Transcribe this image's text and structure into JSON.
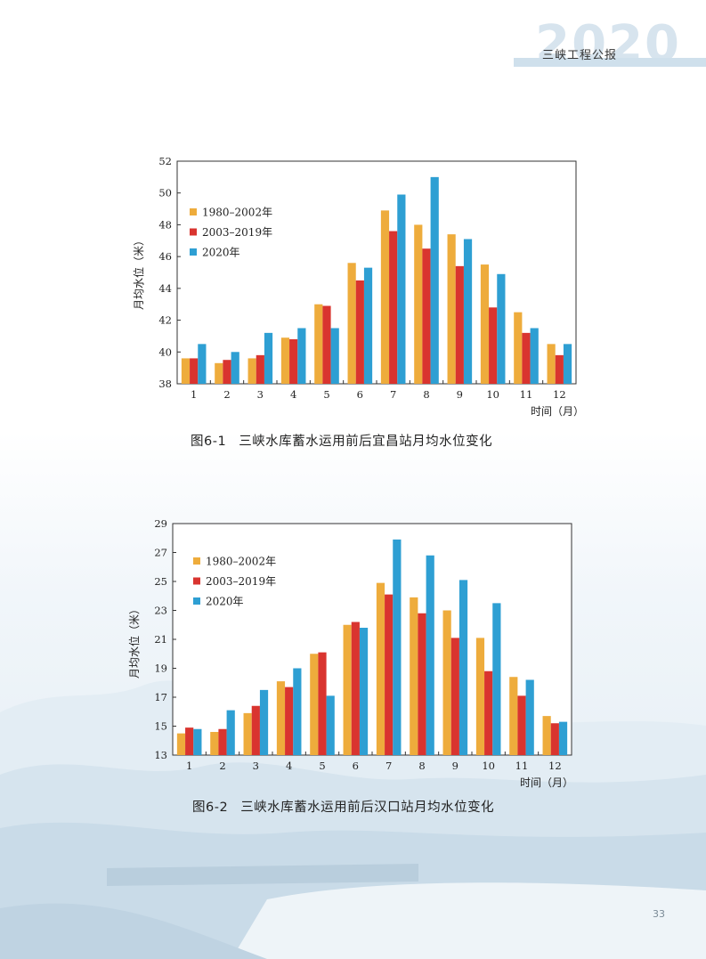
{
  "header": {
    "title": "三峡工程公报",
    "watermark_year": "2020"
  },
  "page_number": "33",
  "series_colors": [
    "#eeac3c",
    "#d9342f",
    "#2e9fd3"
  ],
  "captions": [
    {
      "num": "图6-1",
      "text": "三峡水库蓄水运用前后宜昌站月均水位变化"
    },
    {
      "num": "图6-2",
      "text": "三峡水库蓄水运用前后汉口站月均水位变化"
    }
  ],
  "chart_data": [
    {
      "type": "bar",
      "title": "图6-1 三峡水库蓄水运用前后宜昌站月均水位变化",
      "xlabel": "时间（月）",
      "ylabel": "月均水位（米）",
      "ylim": [
        38,
        52
      ],
      "yticks": [
        38,
        40,
        42,
        44,
        46,
        48,
        50,
        52
      ],
      "categories": [
        "1",
        "2",
        "3",
        "4",
        "5",
        "6",
        "7",
        "8",
        "9",
        "10",
        "11",
        "12"
      ],
      "legend_position": "upper-left",
      "series": [
        {
          "name": "1980–2002年",
          "values": [
            39.6,
            39.3,
            39.6,
            40.9,
            43.0,
            45.6,
            48.9,
            48.0,
            47.4,
            45.5,
            42.5,
            40.5
          ]
        },
        {
          "name": "2003–2019年",
          "values": [
            39.6,
            39.5,
            39.8,
            40.8,
            42.9,
            44.5,
            47.6,
            46.5,
            45.4,
            42.8,
            41.2,
            39.8
          ]
        },
        {
          "name": "2020年",
          "values": [
            40.5,
            40.0,
            41.2,
            41.5,
            41.5,
            45.3,
            49.9,
            51.0,
            47.1,
            44.9,
            41.5,
            40.5
          ]
        }
      ]
    },
    {
      "type": "bar",
      "title": "图6-2 三峡水库蓄水运用前后汉口站月均水位变化",
      "xlabel": "时间（月）",
      "ylabel": "月均水位（米）",
      "ylim": [
        13,
        29
      ],
      "yticks": [
        13,
        15,
        17,
        19,
        21,
        23,
        25,
        27,
        29
      ],
      "categories": [
        "1",
        "2",
        "3",
        "4",
        "5",
        "6",
        "7",
        "8",
        "9",
        "10",
        "11",
        "12"
      ],
      "legend_position": "upper-left",
      "series": [
        {
          "name": "1980–2002年",
          "values": [
            14.5,
            14.6,
            15.9,
            18.1,
            20.0,
            22.0,
            24.9,
            23.9,
            23.0,
            21.1,
            18.4,
            15.7
          ]
        },
        {
          "name": "2003–2019年",
          "values": [
            14.9,
            14.8,
            16.4,
            17.7,
            20.1,
            22.2,
            24.1,
            22.8,
            21.1,
            18.8,
            17.1,
            15.2
          ]
        },
        {
          "name": "2020年",
          "values": [
            14.8,
            16.1,
            17.5,
            19.0,
            17.1,
            21.8,
            27.9,
            26.8,
            25.1,
            23.5,
            18.2,
            15.3
          ]
        }
      ]
    }
  ]
}
